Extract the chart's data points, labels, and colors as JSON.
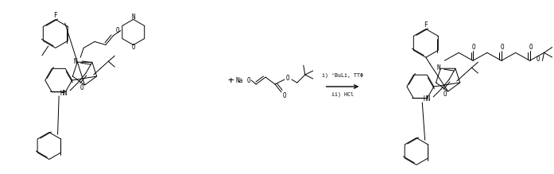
{
  "figsize": [
    6.97,
    2.19
  ],
  "dpi": 100,
  "bg": "#ffffff",
  "lw": 0.7,
  "fs": 5.5,
  "arrow_conditions_1": "i) ⁺BuLi, TTΦ",
  "arrow_conditions_2": "ii) HCl",
  "NaO_text": "Na O",
  "plus_text": "+",
  "F_text": "F",
  "N_text": "N",
  "O_text": "O",
  "HN_text": "HN"
}
